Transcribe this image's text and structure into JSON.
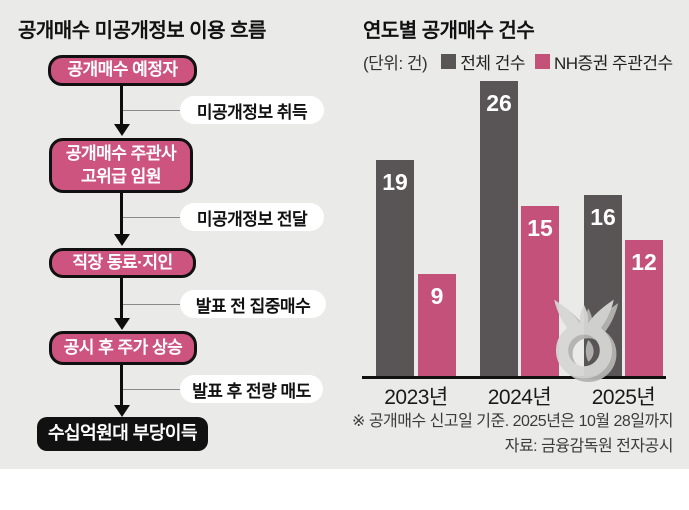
{
  "left_panel": {
    "title": "공개매수 미공개정보 이용 흐름",
    "flow": {
      "nodes": [
        {
          "lines": [
            "공개매수 예정자"
          ]
        },
        {
          "lines": [
            "공개매수 주관사",
            "고위급 임원"
          ]
        },
        {
          "lines": [
            "직장 동료·지인"
          ]
        },
        {
          "lines": [
            "공시 후 주가 상승"
          ]
        },
        {
          "lines": [
            "수십억원대 부당이득"
          ]
        }
      ],
      "edges": [
        "미공개정보 취득",
        "미공개정보 전달",
        "발표 전 집중매수",
        "발표 후 전량 매도"
      ]
    }
  },
  "right_panel": {
    "title": "연도별 공개매수 건수",
    "unit_label": "(단위: 건)",
    "legend": [
      {
        "label": "전체 건수",
        "color": "#595557"
      },
      {
        "label": "NH증권 주관건수",
        "color": "#c4517a"
      }
    ],
    "footnote": "※ 공개매수 신고일 기준. 2025년은 10월 28일까지",
    "source": "자료: 금융감독원 전자공시"
  },
  "chart_data": {
    "type": "bar",
    "title": "연도별 공개매수 건수",
    "unit": "건",
    "categories": [
      "2023년",
      "2024년",
      "2025년"
    ],
    "series": [
      {
        "name": "전체 건수",
        "values": [
          19,
          26,
          16
        ],
        "color": "#595557"
      },
      {
        "name": "NH증권 주관건수",
        "values": [
          9,
          15,
          12
        ],
        "color": "#c4517a"
      }
    ],
    "ylim": [
      0,
      28
    ],
    "grid": false,
    "legend_position": "top",
    "value_labels": "inside-top"
  },
  "colors": {
    "background": "#eaeae8",
    "node_pink": "#ce5480",
    "node_black": "#111111",
    "bar_gray": "#595557",
    "bar_pink": "#c4517a",
    "watermark_gray": "#d6d6d4"
  }
}
